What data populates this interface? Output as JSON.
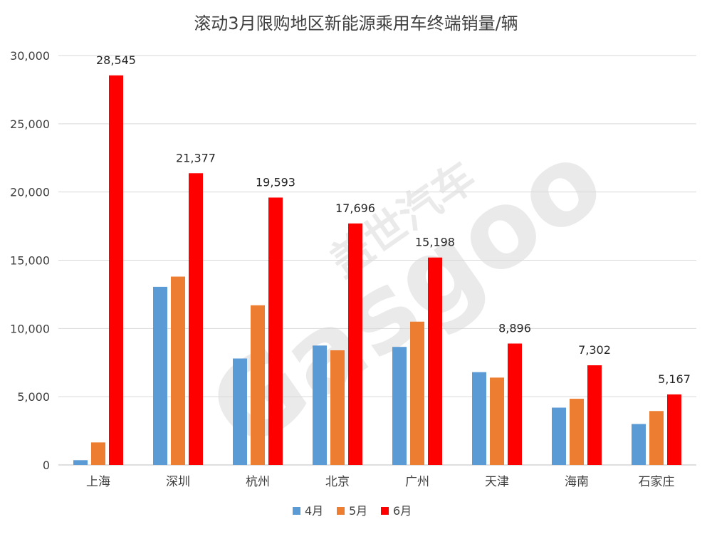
{
  "chart_data": {
    "type": "bar",
    "title": "滚动3月限购地区新能源乘用车终端销量/辆",
    "xlabel": "",
    "ylabel": "",
    "categories": [
      "上海",
      "深圳",
      "杭州",
      "北京",
      "广州",
      "天津",
      "海南",
      "石家庄"
    ],
    "series": [
      {
        "name": "4月",
        "color": "#5b9bd5",
        "values": [
          350,
          13050,
          7800,
          8750,
          8650,
          6800,
          4200,
          3000
        ]
      },
      {
        "name": "5月",
        "color": "#ed7d31",
        "values": [
          1650,
          13800,
          11700,
          8400,
          10500,
          6400,
          4850,
          3950
        ]
      },
      {
        "name": "6月",
        "color": "#ff0000",
        "values": [
          28545,
          21377,
          19593,
          17696,
          15198,
          8896,
          7302,
          5167
        ]
      }
    ],
    "data_labels": [
      "28,545",
      "21,377",
      "19,593",
      "17,696",
      "15,198",
      "8,896",
      "7,302",
      "5,167"
    ],
    "ylim": [
      0,
      30000
    ],
    "yticks": [
      0,
      5000,
      10000,
      15000,
      20000,
      25000,
      30000
    ],
    "ytick_labels": [
      "0",
      "5,000",
      "10,000",
      "15,000",
      "20,000",
      "25,000",
      "30,000"
    ],
    "grid": true,
    "legend_position": "bottom"
  },
  "watermark": {
    "cn": "盖世汽车",
    "en": "Gasgoo"
  }
}
